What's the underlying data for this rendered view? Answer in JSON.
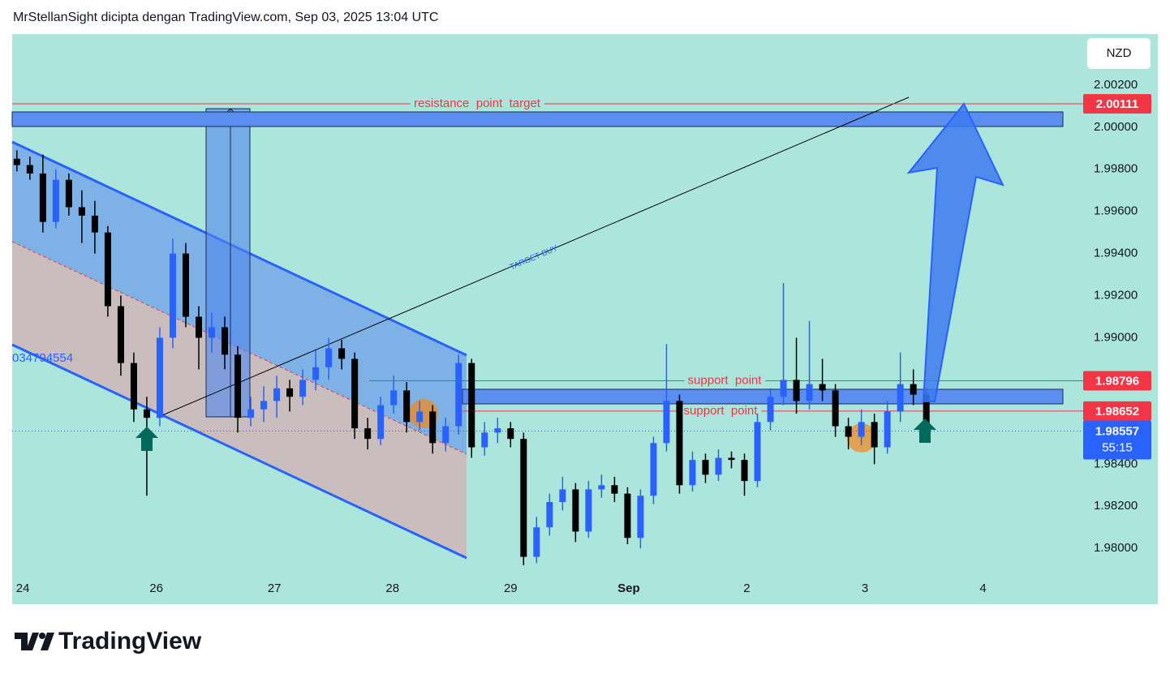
{
  "chart_data": {
    "type": "candlestick",
    "header": "MrStellanSight dicipta dengan TradingView.com, Sep 03, 2025 13:04 UTC",
    "currency": "NZD",
    "brand": "TradingView",
    "target_label": "TARGET BUY",
    "side_label": "034794554",
    "up_color": "#2962ff",
    "down_color": "#000000",
    "xlim": [
      24.78,
      34.48
    ],
    "ylim": [
      1.97735,
      2.00442
    ],
    "xticks": [
      {
        "value": 24.87,
        "label": "24"
      },
      26,
      27,
      28,
      29,
      {
        "value": 30,
        "label": "Sep"
      },
      {
        "value": 31,
        "label": "2"
      },
      {
        "value": 32,
        "label": "3"
      },
      {
        "value": 33,
        "label": "4"
      }
    ],
    "yticks": [
      {
        "value": 2.002,
        "label": "2.00200"
      },
      {
        "value": 2.0,
        "label": "2.00000"
      },
      {
        "value": 1.998,
        "label": "1.99800"
      },
      {
        "value": 1.996,
        "label": "1.99600"
      },
      {
        "value": 1.994,
        "label": "1.99400"
      },
      {
        "value": 1.992,
        "label": "1.99200"
      },
      {
        "value": 1.99,
        "label": "1.99000"
      },
      {
        "value": 1.984,
        "label": "1.98400"
      },
      {
        "value": 1.982,
        "label": "1.98200"
      },
      {
        "value": 1.98,
        "label": "1.98000"
      }
    ],
    "levels": [
      {
        "value": 2.00111,
        "text": "resistance  point  target",
        "color": "#f23645"
      },
      {
        "value": 1.98796,
        "text": "support  point",
        "color": "#f23645"
      },
      {
        "value": 1.98652,
        "text": "support  point",
        "color": "#f23645"
      }
    ],
    "last_price": {
      "value": 1.98557,
      "countdown": "55:15",
      "color": "#2962ff"
    },
    "ohlc": [
      [
        24.82,
        1.9985,
        1.9989,
        1.9979,
        1.9982
      ],
      [
        24.93,
        1.9982,
        1.9986,
        1.9975,
        1.9978
      ],
      [
        25.04,
        1.9978,
        1.9987,
        1.995,
        1.9955
      ],
      [
        25.15,
        1.9955,
        1.998,
        1.9952,
        1.9975
      ],
      [
        25.26,
        1.9975,
        1.9978,
        1.9958,
        1.9962
      ],
      [
        25.37,
        1.9962,
        1.997,
        1.9945,
        1.9958
      ],
      [
        25.48,
        1.9958,
        1.9965,
        1.994,
        1.995
      ],
      [
        25.59,
        1.995,
        1.9953,
        1.991,
        1.9915
      ],
      [
        25.7,
        1.9915,
        1.992,
        1.9882,
        1.9888
      ],
      [
        25.81,
        1.9888,
        1.9893,
        1.986,
        1.9866
      ],
      [
        25.92,
        1.9866,
        1.9872,
        1.9825,
        1.9862
      ],
      [
        26.03,
        1.9862,
        1.9905,
        1.9858,
        1.99
      ],
      [
        26.14,
        1.99,
        1.9947,
        1.9895,
        1.994
      ],
      [
        26.25,
        1.994,
        1.9945,
        1.9905,
        1.991
      ],
      [
        26.36,
        1.991,
        1.9915,
        1.9885,
        1.99
      ],
      [
        26.47,
        1.99,
        1.9912,
        1.9893,
        1.9905
      ],
      [
        26.58,
        1.9905,
        1.991,
        1.9885,
        1.9892
      ],
      [
        26.69,
        1.9892,
        1.9896,
        1.9855,
        1.9862
      ],
      [
        26.8,
        1.9862,
        1.9872,
        1.9858,
        1.9866
      ],
      [
        26.91,
        1.9866,
        1.9877,
        1.986,
        1.987
      ],
      [
        27.02,
        1.987,
        1.9882,
        1.9862,
        1.9876
      ],
      [
        27.13,
        1.9876,
        1.988,
        1.9865,
        1.9872
      ],
      [
        27.24,
        1.9872,
        1.9885,
        1.9868,
        1.988
      ],
      [
        27.35,
        1.988,
        1.9894,
        1.9875,
        1.9886
      ],
      [
        27.46,
        1.9886,
        1.99,
        1.988,
        1.9895
      ],
      [
        27.57,
        1.9895,
        1.9899,
        1.9885,
        1.989
      ],
      [
        27.68,
        1.989,
        1.9893,
        1.9852,
        1.9857
      ],
      [
        27.79,
        1.9857,
        1.9862,
        1.9847,
        1.9852
      ],
      [
        27.9,
        1.9852,
        1.9872,
        1.9849,
        1.9868
      ],
      [
        28.01,
        1.9868,
        1.9882,
        1.9864,
        1.9875
      ],
      [
        28.12,
        1.9875,
        1.9879,
        1.9855,
        1.986
      ],
      [
        28.23,
        1.986,
        1.987,
        1.9856,
        1.9865
      ],
      [
        28.34,
        1.9865,
        1.9868,
        1.9845,
        1.985
      ],
      [
        28.45,
        1.985,
        1.9862,
        1.9846,
        1.9858
      ],
      [
        28.56,
        1.9858,
        1.9892,
        1.9854,
        1.9888
      ],
      [
        28.67,
        1.9888,
        1.989,
        1.9843,
        1.9848
      ],
      [
        28.78,
        1.9848,
        1.986,
        1.9844,
        1.9855
      ],
      [
        28.89,
        1.9855,
        1.9862,
        1.985,
        1.9857
      ],
      [
        29.0,
        1.9857,
        1.986,
        1.9848,
        1.9852
      ],
      [
        29.11,
        1.9852,
        1.9855,
        1.9792,
        1.9796
      ],
      [
        29.22,
        1.9796,
        1.9815,
        1.9793,
        1.981
      ],
      [
        29.33,
        1.981,
        1.9826,
        1.9806,
        1.9822
      ],
      [
        29.44,
        1.9822,
        1.9834,
        1.9818,
        1.9828
      ],
      [
        29.55,
        1.9828,
        1.9831,
        1.9803,
        1.9808
      ],
      [
        29.66,
        1.9808,
        1.9832,
        1.9805,
        1.9828
      ],
      [
        29.77,
        1.9828,
        1.9835,
        1.9824,
        1.983
      ],
      [
        29.88,
        1.983,
        1.9834,
        1.9822,
        1.9826
      ],
      [
        29.99,
        1.9826,
        1.9829,
        1.9802,
        1.9805
      ],
      [
        30.1,
        1.9805,
        1.9828,
        1.98,
        1.9825
      ],
      [
        30.21,
        1.9825,
        1.9853,
        1.9821,
        1.985
      ],
      [
        30.32,
        1.985,
        1.9897,
        1.9846,
        1.987
      ],
      [
        30.43,
        1.987,
        1.9873,
        1.9826,
        1.983
      ],
      [
        30.54,
        1.983,
        1.9846,
        1.9827,
        1.9842
      ],
      [
        30.65,
        1.9842,
        1.9845,
        1.9831,
        1.9835
      ],
      [
        30.76,
        1.9835,
        1.9847,
        1.9832,
        1.9843
      ],
      [
        30.87,
        1.9843,
        1.9846,
        1.9838,
        1.9842
      ],
      [
        30.98,
        1.9842,
        1.9845,
        1.9825,
        1.9832
      ],
      [
        31.09,
        1.9832,
        1.9864,
        1.9829,
        1.986
      ],
      [
        31.2,
        1.986,
        1.9876,
        1.9856,
        1.9872
      ],
      [
        31.31,
        1.9872,
        1.9926,
        1.9868,
        1.988
      ],
      [
        31.42,
        1.988,
        1.99,
        1.9864,
        1.987
      ],
      [
        31.53,
        1.987,
        1.9908,
        1.9866,
        1.9878
      ],
      [
        31.64,
        1.9878,
        1.989,
        1.987,
        1.9875
      ],
      [
        31.75,
        1.9875,
        1.9878,
        1.9853,
        1.9858
      ],
      [
        31.86,
        1.9858,
        1.9862,
        1.9847,
        1.9853
      ],
      [
        31.97,
        1.9853,
        1.9866,
        1.9849,
        1.986
      ],
      [
        32.08,
        1.986,
        1.9864,
        1.984,
        1.9848
      ],
      [
        32.19,
        1.9848,
        1.987,
        1.9845,
        1.9865
      ],
      [
        32.3,
        1.9865,
        1.9893,
        1.986,
        1.9878
      ],
      [
        32.41,
        1.9878,
        1.9885,
        1.9868,
        1.9873
      ],
      [
        32.52,
        1.9873,
        1.9876,
        1.9852,
        1.98557
      ]
    ]
  }
}
